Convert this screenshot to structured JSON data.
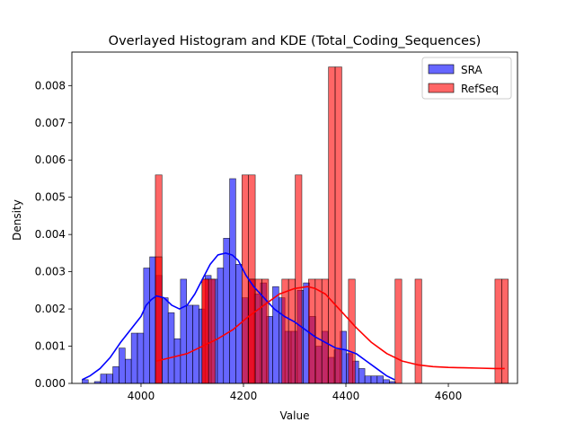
{
  "chart_data": {
    "type": "bar",
    "title": "Overlayed Histogram and KDE (Total_Coding_Sequences)",
    "xlabel": "Value",
    "ylabel": "Density",
    "xlim": [
      3865,
      4735
    ],
    "ylim": [
      0,
      0.0089
    ],
    "xticks": [
      4000,
      4200,
      4400,
      4600
    ],
    "xtick_labels": [
      "4000",
      "4200",
      "4400",
      "4600"
    ],
    "yticks": [
      0,
      0.001,
      0.002,
      0.003,
      0.004,
      0.005,
      0.006,
      0.007,
      0.008
    ],
    "ytick_labels": [
      "0.000",
      "0.001",
      "0.002",
      "0.003",
      "0.004",
      "0.005",
      "0.006",
      "0.007",
      "0.008"
    ],
    "legend_position": "top-right",
    "grid": false,
    "series": [
      {
        "name": "SRA",
        "color": "#0000ff",
        "bin_width": 12,
        "bins_left": [
          3885,
          3897,
          3909,
          3921,
          3933,
          3945,
          3957,
          3969,
          3981,
          3993,
          4005,
          4017,
          4029,
          4041,
          4053,
          4065,
          4077,
          4089,
          4101,
          4113,
          4125,
          4137,
          4149,
          4161,
          4173,
          4185,
          4197,
          4209,
          4221,
          4233,
          4245,
          4257,
          4269,
          4281,
          4293,
          4305,
          4317,
          4329,
          4341,
          4353,
          4365,
          4377,
          4389,
          4401,
          4413,
          4425,
          4437,
          4449,
          4461,
          4473,
          4485
        ],
        "values": [
          0.0001,
          0.0,
          5e-05,
          0.00025,
          0.00025,
          0.00045,
          0.00095,
          0.00065,
          0.00135,
          0.00135,
          0.0031,
          0.0034,
          0.0029,
          0.0023,
          0.0019,
          0.0012,
          0.0028,
          0.0021,
          0.0021,
          0.002,
          0.0029,
          0.0028,
          0.0031,
          0.0039,
          0.0055,
          0.0032,
          0.0023,
          0.0028,
          0.0024,
          0.0027,
          0.0018,
          0.0026,
          0.0023,
          0.0014,
          0.0014,
          0.0025,
          0.0027,
          0.0018,
          0.001,
          0.0014,
          0.0007,
          0.0009,
          0.0014,
          0.0008,
          0.0006,
          0.0004,
          0.0002,
          0.0002,
          0.0002,
          0.0001,
          5e-05
        ],
        "kde_x": [
          3885,
          3900,
          3920,
          3940,
          3960,
          3980,
          4000,
          4010,
          4020,
          4030,
          4045,
          4060,
          4075,
          4090,
          4105,
          4120,
          4135,
          4150,
          4165,
          4178,
          4190,
          4205,
          4220,
          4240,
          4260,
          4280,
          4300,
          4320,
          4340,
          4360,
          4380,
          4400,
          4420,
          4440,
          4460,
          4480,
          4495
        ],
        "kde_y": [
          0.0001,
          0.0002,
          0.0004,
          0.0007,
          0.0011,
          0.00145,
          0.0018,
          0.0021,
          0.00225,
          0.00235,
          0.0023,
          0.0021,
          0.002,
          0.0021,
          0.0024,
          0.0028,
          0.0032,
          0.00345,
          0.0035,
          0.00345,
          0.0033,
          0.0029,
          0.0026,
          0.0023,
          0.002,
          0.0018,
          0.00165,
          0.00145,
          0.00125,
          0.0011,
          0.00095,
          0.0009,
          0.0008,
          0.0006,
          0.0004,
          0.0002,
          0.0001
        ]
      },
      {
        "name": "RefSeq",
        "color": "#ff0000",
        "bin_width": 13,
        "bins_left": [
          4028,
          4119,
          4210,
          4301,
          4340,
          4366,
          4379,
          4405,
          4496,
          4535,
          4691,
          4704
        ],
        "values": [
          0.0056,
          0.0028,
          0.0056,
          0.0056,
          0.0028,
          0.0085,
          0.0085,
          0.0028,
          0.0028,
          0.0028,
          0.0028,
          0.0028
        ],
        "extra_bins": [
          {
            "left": 4028,
            "value": 0.0034
          },
          {
            "left": 4119,
            "value": 0.0028
          },
          {
            "left": 4132,
            "value": 0.0028
          },
          {
            "left": 4197,
            "value": 0.0056
          },
          {
            "left": 4210,
            "value": 0.0028
          },
          {
            "left": 4223,
            "value": 0.0028
          },
          {
            "left": 4236,
            "value": 0.0028
          },
          {
            "left": 4275,
            "value": 0.0028
          },
          {
            "left": 4288,
            "value": 0.0028
          },
          {
            "left": 4327,
            "value": 0.0028
          },
          {
            "left": 4353,
            "value": 0.0028
          }
        ],
        "kde_x": [
          4030,
          4060,
          4090,
          4120,
          4150,
          4180,
          4210,
          4240,
          4270,
          4300,
          4325,
          4340,
          4360,
          4380,
          4400,
          4420,
          4450,
          4480,
          4510,
          4540,
          4570,
          4600,
          4630,
          4660,
          4690,
          4710
        ],
        "kde_y": [
          0.0006,
          0.0007,
          0.0008,
          0.001,
          0.0012,
          0.00145,
          0.0018,
          0.0021,
          0.0024,
          0.00255,
          0.0026,
          0.00255,
          0.0024,
          0.0021,
          0.0018,
          0.0015,
          0.0011,
          0.0008,
          0.0006,
          0.0005,
          0.00045,
          0.00043,
          0.00042,
          0.00041,
          0.0004,
          0.0004
        ]
      }
    ]
  }
}
